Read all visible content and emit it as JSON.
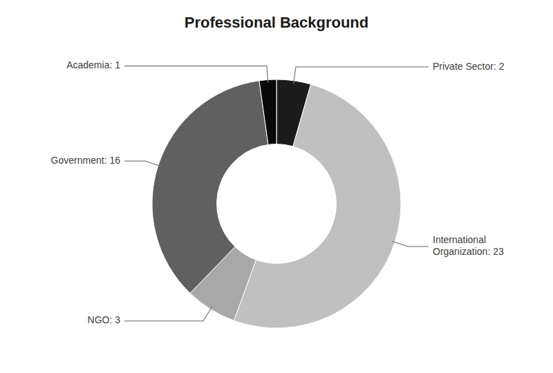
{
  "chart_data": {
    "type": "donut",
    "title": "Professional Background",
    "values": [
      2,
      23,
      3,
      16,
      1
    ],
    "value_labels": [
      "Private Sector: 2",
      "International\nOrganization: 23",
      "NGO: 3",
      "Government: 16",
      "Academia: 1"
    ],
    "colors": [
      "#1c1c1c",
      "#c0c0c0",
      "#a8a8a8",
      "#606060",
      "#080808"
    ],
    "data_labels": true
  }
}
